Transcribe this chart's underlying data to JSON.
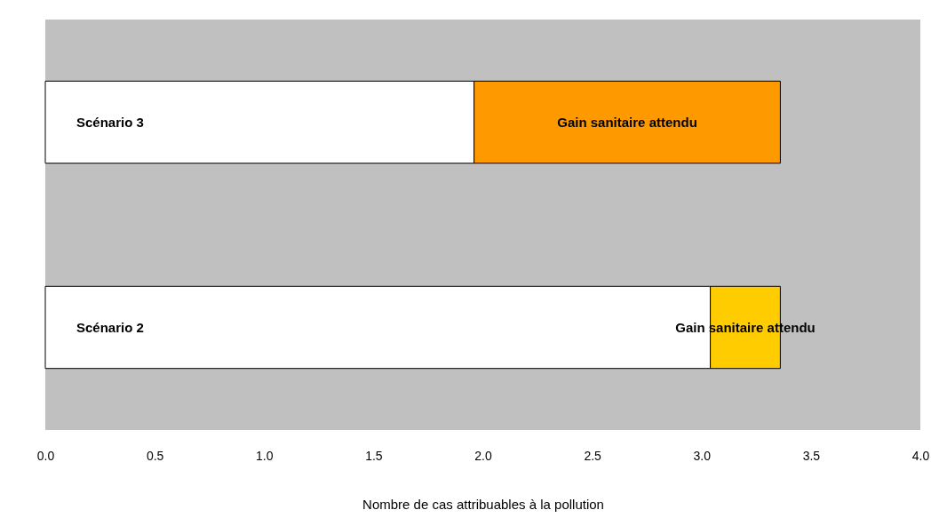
{
  "chart_data": {
    "type": "bar",
    "orientation": "horizontal",
    "stacked": true,
    "xlabel": "Nombre de cas attribuables à la pollution",
    "categories": [
      "Scénario 3",
      "Scénario 2"
    ],
    "series": [
      {
        "color": "#ffffff",
        "values": [
          1.96,
          3.04
        ]
      },
      {
        "name": "Gain sanitaire attendu",
        "colors": [
          "#ff9900",
          "#ffcc00"
        ],
        "values": [
          1.4,
          0.32
        ]
      }
    ],
    "xlim": [
      0,
      4
    ],
    "xticks": [
      {
        "value": 0,
        "label": "0.0"
      },
      0.5,
      {
        "value": 1,
        "label": "1.0"
      },
      1.5,
      {
        "value": 2,
        "label": "2.0"
      },
      2.5,
      {
        "value": 3,
        "label": "3.0"
      },
      3.5,
      {
        "value": 4,
        "label": "4.0"
      }
    ],
    "grid": false
  }
}
